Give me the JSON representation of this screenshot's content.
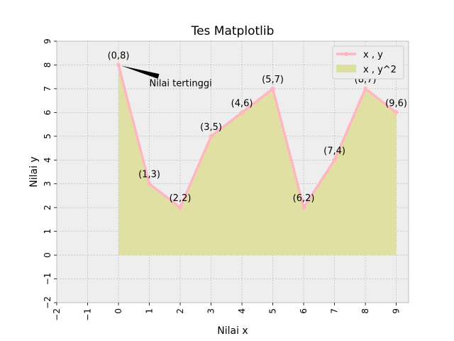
{
  "chart_data": {
    "type": "area",
    "title": "Tes Matplotlib",
    "xlabel": "Nilai x",
    "ylabel": "Nilai y",
    "xlim": [
      -2,
      9.4
    ],
    "ylim": [
      -2,
      9
    ],
    "xticks": [
      -2,
      -1,
      0,
      1,
      2,
      3,
      4,
      5,
      6,
      7,
      8,
      9
    ],
    "yticks": [
      -2,
      -1,
      0,
      1,
      2,
      3,
      4,
      5,
      6,
      7,
      8,
      9
    ],
    "xtick_labels": [
      "−2",
      "−1",
      "0",
      "1",
      "2",
      "3",
      "4",
      "5",
      "6",
      "7",
      "8",
      "9"
    ],
    "ytick_labels": [
      "−2",
      "−1",
      "0",
      "1",
      "2",
      "3",
      "4",
      "5",
      "6",
      "7",
      "8",
      "9"
    ],
    "grid": true,
    "legend_position": "top-right",
    "x": [
      0,
      1,
      2,
      3,
      4,
      5,
      6,
      7,
      8,
      9
    ],
    "series": [
      {
        "name": "x , y",
        "kind": "line",
        "color": "#ffb6c1",
        "values": [
          8,
          3,
          2,
          5,
          6,
          7,
          2,
          4,
          7,
          6
        ]
      },
      {
        "name": "x , y^2",
        "kind": "area",
        "color": "#dede9e",
        "values": [
          8,
          3,
          2,
          5,
          6,
          7,
          2,
          4,
          7,
          6
        ]
      }
    ],
    "point_labels": [
      "(0,8)",
      "(1,3)",
      "(2,2)",
      "(3,5)",
      "(4,6)",
      "(5,7)",
      "(6,2)",
      "(7,4)",
      "(8,7)",
      "(9,6)"
    ],
    "annotation": {
      "text": "Nilai tertinggi",
      "x": 0,
      "y": 8,
      "text_x": 1,
      "text_y": 7.4
    }
  },
  "colors": {
    "axes_background": "#eeeeee",
    "grid": "#b0b0b0",
    "spine": "#bcbcbc"
  }
}
